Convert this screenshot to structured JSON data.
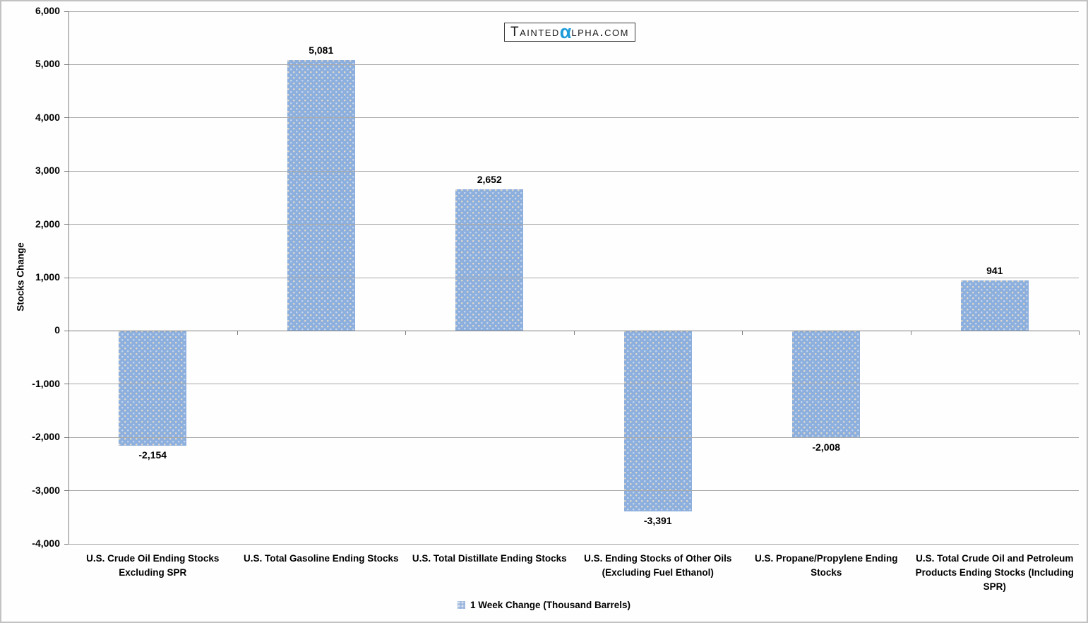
{
  "watermark": {
    "name": "TaintedAlpha.com",
    "prefix": "Tainted",
    "alpha": "α",
    "suffix": "lpha.com",
    "alpha_color": "#1e9cd8"
  },
  "legend": {
    "label": "1 Week Change (Thousand Barrels)"
  },
  "chart_data": {
    "type": "bar",
    "title": "",
    "categories": [
      "U.S. Crude Oil Ending Stocks Excluding SPR",
      "U.S. Total Gasoline Ending Stocks",
      "U.S. Total Distillate Ending Stocks",
      "U.S. Ending Stocks of Other Oils (Excluding Fuel Ethanol)",
      "U.S. Propane/Propylene Ending Stocks",
      "U.S. Total Crude Oil and Petroleum Products Ending Stocks (Including SPR)"
    ],
    "series": [
      {
        "name": "1 Week Change (Thousand Barrels)",
        "values": [
          -2154,
          5081,
          2652,
          -3391,
          -2008,
          941
        ]
      }
    ],
    "value_labels": [
      "-2,154",
      "5,081",
      "2,652",
      "-3,391",
      "-2,008",
      "941"
    ],
    "xlabel": "",
    "ylabel": "Stocks Change",
    "ylim": [
      -4000,
      6000
    ],
    "ytick_step": 1000,
    "ytick_labels": [
      "6,000",
      "5,000",
      "4,000",
      "3,000",
      "2,000",
      "1,000",
      "0",
      "-1,000",
      "-2,000",
      "-3,000",
      "-4,000"
    ],
    "grid": true,
    "legend_position": "bottom",
    "bar_color": "#8cafdd",
    "gridline_color": "#a9a9a9",
    "axis_color": "#7f7f7f"
  }
}
